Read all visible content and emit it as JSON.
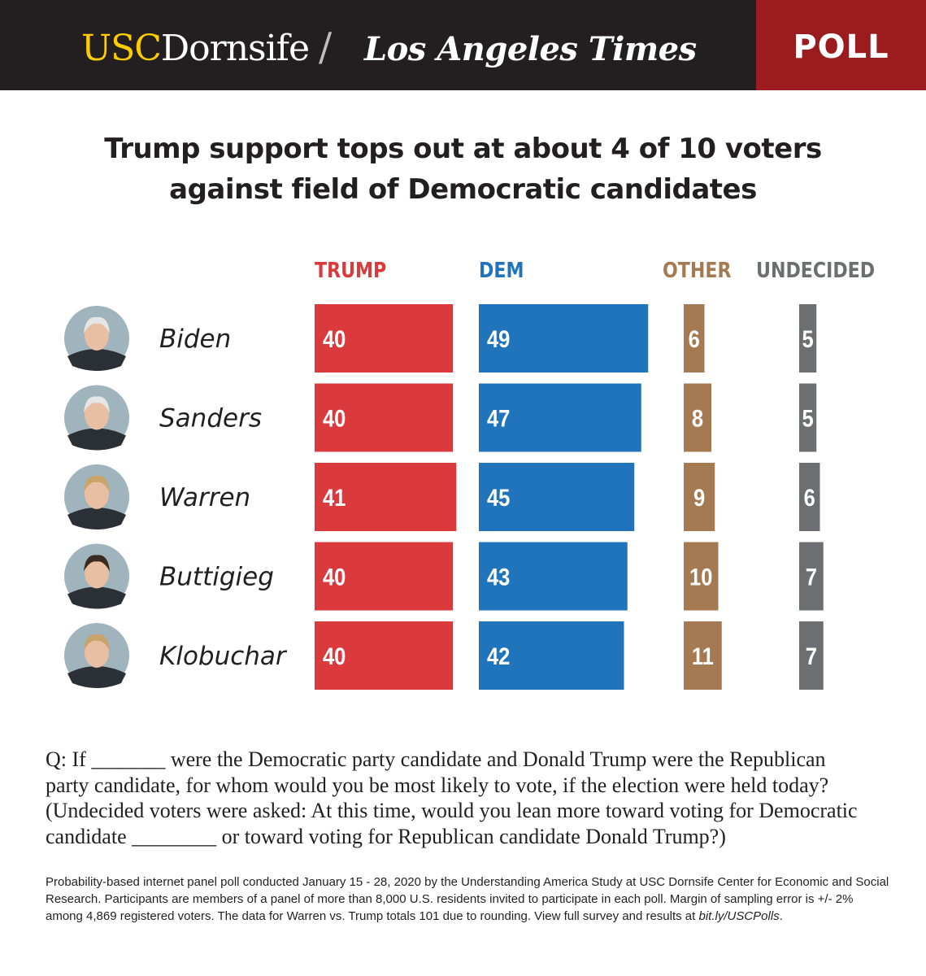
{
  "header": {
    "usc": "USC",
    "dornsife": "Dornsife",
    "slash": "/",
    "lat": "Los Angeles Times",
    "poll": "POLL"
  },
  "title_lines": [
    "Trump support tops out at about 4 of 10 voters",
    "against field of Democratic candidates"
  ],
  "colors": {
    "trump": "#db3a3d",
    "dem": "#1f74bb",
    "other": "#a57a52",
    "undecided": "#6d6e71"
  },
  "chart_data": {
    "type": "bar",
    "title": "Trump support tops out at about 4 of 10 voters against field of Democratic candidates",
    "unit": "percent",
    "categories": [
      "Biden",
      "Sanders",
      "Warren",
      "Buttigieg",
      "Klobuchar"
    ],
    "series": [
      {
        "name": "TRUMP",
        "values": [
          40,
          40,
          41,
          40,
          40
        ]
      },
      {
        "name": "DEM",
        "values": [
          49,
          47,
          45,
          43,
          42
        ]
      },
      {
        "name": "OTHER",
        "values": [
          6,
          8,
          9,
          10,
          11
        ]
      },
      {
        "name": "UNDECIDED",
        "values": [
          5,
          5,
          6,
          7,
          7
        ]
      }
    ]
  },
  "question": {
    "line1": "Q: If _______ were the Democratic party candidate and Donald Trump were the Republican",
    "line2": "party candidate, for whom would you be most likely to vote, if the election were held today?",
    "line3": "(Undecided voters were asked: At this time, would you lean more toward voting for Democratic",
    "line4": "candidate ________ or toward voting for Republican candidate Donald Trump?)"
  },
  "note": {
    "text": "Probability-based internet panel poll conducted January 15 - 28, 2020 by the Understanding America Study at USC Dornsife Center for Economic and Social Research. Participants are members of a panel of more than 8,000 U.S. residents invited to participate in each poll. Margin of sampling error is +/- 2% among 4,869 registered voters. The data for Warren vs. Trump totals 101 due to rounding. View full survey and results at ",
    "link": "bit.ly/USCPolls",
    "end": "."
  }
}
